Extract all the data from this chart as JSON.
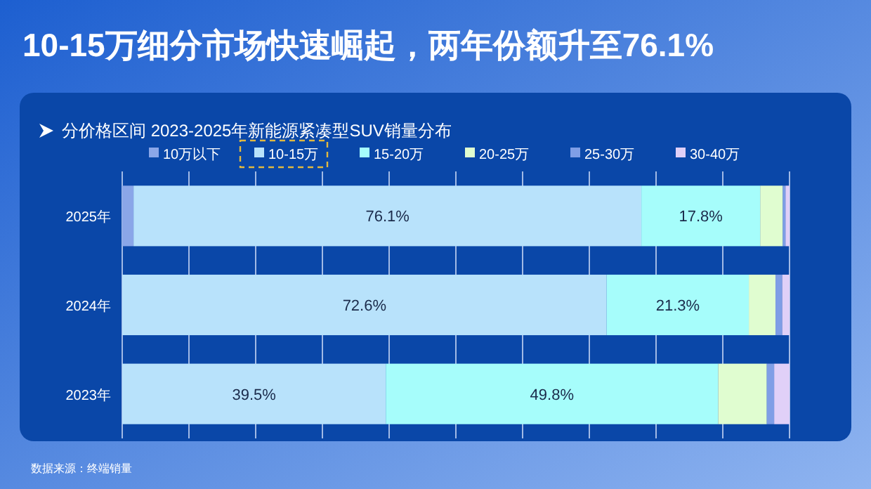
{
  "chart_data": {
    "type": "bar",
    "orientation": "horizontal",
    "stacked": true,
    "title": "10-15万细分市场快速崛起，两年份额升至76.1%",
    "subtitle": "分价格区间 2023-2025年新能源紧凑型SUV销量分布",
    "categories": [
      "2025年",
      "2024年",
      "2023年"
    ],
    "series": [
      {
        "name": "10万以下",
        "color": "#8aa6e8",
        "values": [
          1.7,
          0,
          0
        ],
        "value_labels": [
          null,
          null,
          null
        ]
      },
      {
        "name": "10-15万",
        "color": "#b8e2fb",
        "values": [
          76.1,
          72.6,
          39.5
        ],
        "value_labels": [
          "76.1%",
          "72.6%",
          "39.5%"
        ]
      },
      {
        "name": "15-20万",
        "color": "#a6fdfb",
        "values": [
          17.8,
          21.3,
          49.8
        ],
        "value_labels": [
          "17.8%",
          "21.3%",
          "49.8%"
        ]
      },
      {
        "name": "20-25万",
        "color": "#e0fdd0",
        "values": [
          3.4,
          4.0,
          7.3
        ],
        "value_labels": [
          null,
          null,
          null
        ]
      },
      {
        "name": "25-30万",
        "color": "#7f9ee6",
        "values": [
          0.4,
          1.0,
          1.1
        ],
        "value_labels": [
          null,
          null,
          null
        ]
      },
      {
        "name": "30-40万",
        "color": "#e0d0f8",
        "values": [
          0.6,
          1.1,
          2.3
        ],
        "value_labels": [
          null,
          null,
          null
        ]
      }
    ],
    "xlim": [
      0,
      100
    ],
    "xticks": [
      {
        "value": 0,
        "label": null
      },
      {
        "value": 10,
        "label": null
      },
      {
        "value": 20,
        "label": null
      },
      {
        "value": 30,
        "label": null
      },
      {
        "value": 40,
        "label": null
      },
      {
        "value": 50,
        "label": null
      },
      {
        "value": 60,
        "label": null
      },
      {
        "value": 70,
        "label": null
      },
      {
        "value": 80,
        "label": null
      },
      {
        "value": 90,
        "label": null
      },
      {
        "value": 100,
        "label": null
      }
    ],
    "tick_labels": "y",
    "grid": "x",
    "legend": "top",
    "annotations": [
      "数据来源：终端销量"
    ]
  }
}
